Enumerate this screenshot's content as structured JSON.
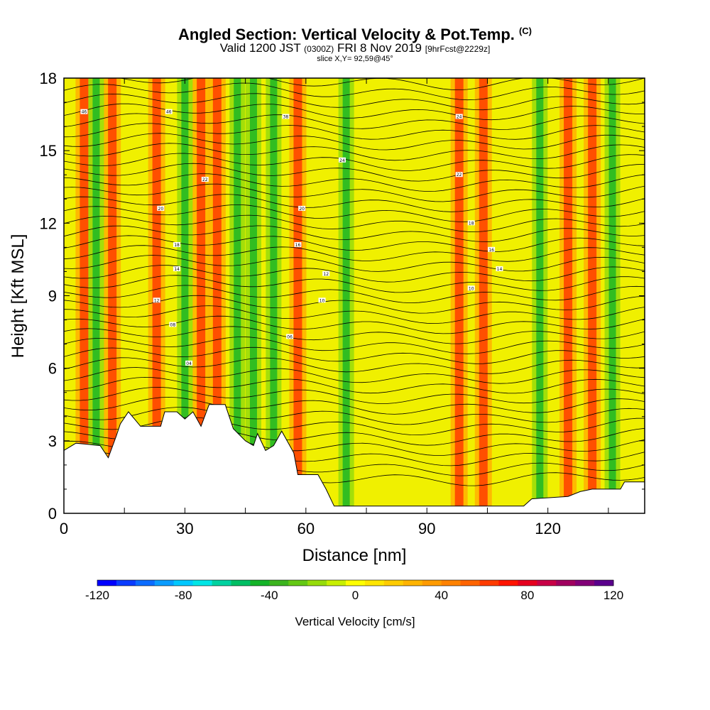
{
  "chart_data": {
    "type": "heatmap",
    "title": "Angled Section: Vertical Velocity & Pot.Temp.",
    "title_units": "(C)",
    "subtitle_valid": "Valid 1200 JST",
    "subtitle_utc": "(0300Z)",
    "subtitle_date": "FRI 8 Nov 2019",
    "subtitle_fcst": "[9hrFcst@2229z]",
    "slice_label": "slice X,Y= 92,59@45°",
    "xlabel": "Distance [nm]",
    "ylabel": "Height [Kft MSL]",
    "xlim": [
      0,
      144
    ],
    "ylim": [
      0,
      18
    ],
    "x_ticks": [
      "0",
      "30",
      "60",
      "90",
      "120"
    ],
    "y_ticks": [
      "0",
      "3",
      "6",
      "9",
      "12",
      "15",
      "18"
    ],
    "colorbar": {
      "title": "Vertical Velocity [cm/s]",
      "range": [
        -120,
        120
      ],
      "tick_labels": [
        "-120",
        "-80",
        "-40",
        "0",
        "40",
        "80",
        "120"
      ],
      "colors": [
        "#0000ff",
        "#0a3cff",
        "#0b6cff",
        "#0a9cff",
        "#00c8ff",
        "#00e6e6",
        "#00d2a0",
        "#00bf64",
        "#14b428",
        "#3cb41e",
        "#64c814",
        "#96dc0a",
        "#c8f000",
        "#ffff00",
        "#ffe600",
        "#ffcc00",
        "#ffb400",
        "#ff9b00",
        "#ff8200",
        "#ff6400",
        "#ff3c00",
        "#ff1400",
        "#e6001e",
        "#c80046",
        "#a0005f",
        "#820078",
        "#5a008c"
      ]
    },
    "updraft_columns_nm": [
      5,
      12,
      23,
      34,
      38,
      58,
      98,
      104,
      125,
      131
    ],
    "downdraft_columns_nm": [
      8,
      30,
      43,
      47,
      52,
      70,
      118,
      136
    ],
    "contour_labels": [
      "46",
      "46",
      "38",
      "24",
      "24",
      "22",
      "22",
      "20",
      "20",
      "18",
      "18",
      "16",
      "16",
      "14",
      "14",
      "12",
      "12",
      "10",
      "10",
      "08",
      "06",
      "04"
    ]
  }
}
